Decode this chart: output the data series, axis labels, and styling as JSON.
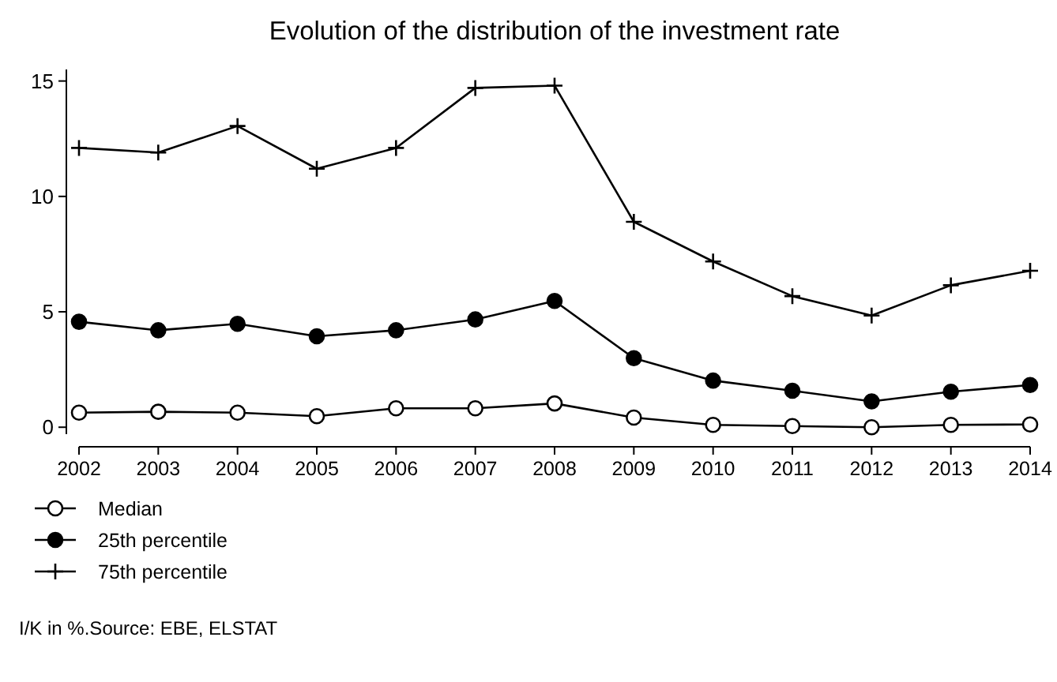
{
  "chart_data": {
    "type": "line",
    "title": "Evolution of the distribution of the investment rate",
    "x": [
      2002,
      2003,
      2004,
      2005,
      2006,
      2007,
      2008,
      2009,
      2010,
      2011,
      2012,
      2013,
      2014
    ],
    "xlim": [
      2002,
      2014
    ],
    "xticks": [
      2002,
      2003,
      2004,
      2005,
      2006,
      2007,
      2008,
      2009,
      2010,
      2011,
      2012,
      2013,
      2014
    ],
    "ylim": [
      -0.3,
      15.5
    ],
    "yticks": [
      0,
      5,
      10,
      15
    ],
    "grid": false,
    "legend": "bottom left",
    "series": [
      {
        "name": "Median",
        "color": "#000000",
        "marker": "circle",
        "values": [
          0.63,
          0.67,
          0.63,
          0.48,
          0.82,
          0.82,
          1.03,
          0.42,
          0.1,
          0.05,
          0.0,
          0.1,
          0.12
        ]
      },
      {
        "name": "25th percentile",
        "color": "#000000",
        "marker": "circle",
        "values": [
          4.57,
          4.2,
          4.48,
          3.94,
          4.2,
          4.67,
          5.47,
          2.99,
          2.02,
          1.58,
          1.12,
          1.54,
          1.83
        ]
      },
      {
        "name": "75th percentile",
        "color": "#000000",
        "marker": "cross",
        "values": [
          12.1,
          11.9,
          13.05,
          11.2,
          12.1,
          14.7,
          14.8,
          8.9,
          7.18,
          5.68,
          4.84,
          6.15,
          6.78
        ]
      }
    ],
    "annotations": [
      "I/K in %.Source: EBE, ELSTAT"
    ]
  }
}
